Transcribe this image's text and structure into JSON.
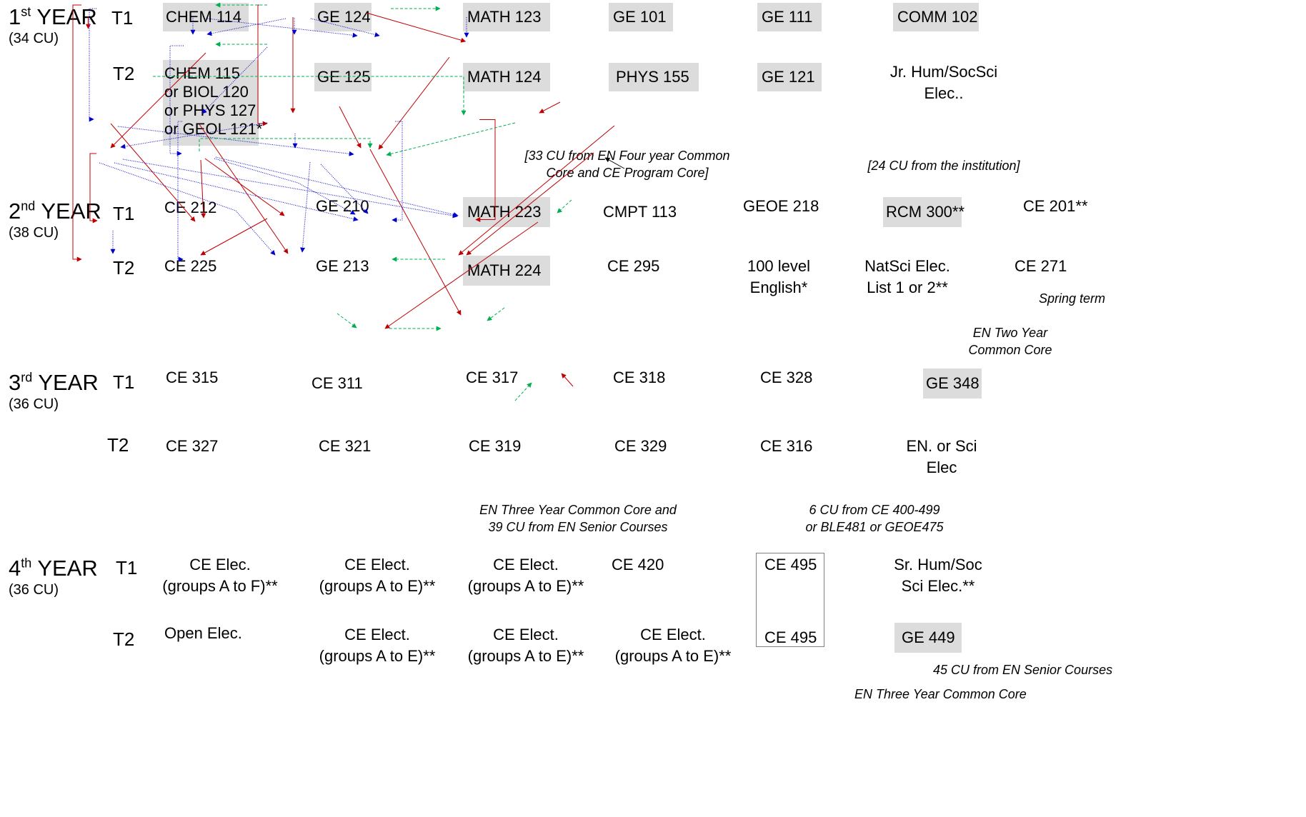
{
  "years": [
    {
      "num": "1",
      "suffix": "st",
      "word": "YEAR",
      "cu": "(34 CU)"
    },
    {
      "num": "2",
      "suffix": "nd",
      "word": "YEAR",
      "cu": "(38 CU)"
    },
    {
      "num": "3",
      "suffix": "rd",
      "word": "YEAR",
      "cu": "(36 CU)"
    },
    {
      "num": "4",
      "suffix": "th",
      "word": "YEAR",
      "cu": "(36 CU)"
    }
  ],
  "terms": {
    "t1": "T1",
    "t2": "T2"
  },
  "courses": {
    "chem114": "CHEM  114",
    "ge124": "GE 124",
    "math123": "MATH 123",
    "ge101": "GE 101",
    "ge111": "GE 111",
    "comm102": "COMM 102",
    "chem115": [
      "CHEM 115",
      "or BIOL 120",
      "or PHYS 127",
      "or GEOL 121*"
    ],
    "ge125": "GE 125",
    "math124": "MATH 124",
    "phys155": "PHYS 155",
    "ge121": "GE 121",
    "jrhum": [
      "Jr. Hum/SocSci",
      "Elec.."
    ],
    "ce212": "CE 212",
    "ge210": "GE 210",
    "math223": "MATH 223",
    "cmpt113": "CMPT 113",
    "geoe218": "GEOE 218",
    "rcm300": "RCM 300**",
    "ce201": "CE 201**",
    "ce225": "CE 225",
    "ge213": "GE 213",
    "math224": "MATH 224",
    "ce295": "CE 295",
    "eng100": [
      "100 level",
      "English*"
    ],
    "natsci": [
      "NatSci Elec.",
      "List 1 or 2**"
    ],
    "ce271": "CE 271",
    "ce315": "CE 315",
    "ce311": "CE 311",
    "ce317": "CE 317",
    "ce318": "CE 318",
    "ce328": "CE 328",
    "ge348": "GE 348",
    "ce327": "CE 327",
    "ce321": "CE 321",
    "ce319": "CE 319",
    "ce329": "CE 329",
    "ce316": "CE 316",
    "ensci": [
      "EN. or Sci",
      "Elec"
    ],
    "ceelec1": [
      "CE Elec.",
      "(groups A to F)**"
    ],
    "ceelect2": [
      "CE Elect.",
      "(groups A to E)**"
    ],
    "ceelect3": [
      "CE Elect.",
      "(groups A to E)**"
    ],
    "ce420": "CE 420",
    "ce495a": "CE 495",
    "srhum": [
      "Sr. Hum/Soc",
      "Sci Elec.**"
    ],
    "openelec": "Open Elec.",
    "ceelect4": [
      "CE Elect.",
      "(groups A to E)**"
    ],
    "ceelect5": [
      "CE Elect.",
      "(groups A to E)**"
    ],
    "ceelect6": [
      "CE Elect.",
      "(groups A to E)**"
    ],
    "ce495b": "CE 495",
    "ge449": "GE 449"
  },
  "notes": {
    "core33": [
      "[33 CU from EN Four year Common",
      "Core and CE Program Core]"
    ],
    "inst24": "[24 CU from the institution]",
    "spring": "Spring term",
    "twoyear": [
      "EN Two Year",
      "Common Core"
    ],
    "threeyear39": [
      "EN Three Year Common Core and",
      "39 CU from EN Senior Courses"
    ],
    "ce400": [
      "6 CU from CE 400-499",
      "or BLE481 or GEOE475"
    ],
    "senior45": "45 CU from EN Senior Courses",
    "threeyear": "EN Three Year Common Core"
  },
  "colors": {
    "solid": "#c00000",
    "dotted": "#0000cc",
    "dashed": "#00b050",
    "box": "#dcdcdc"
  }
}
